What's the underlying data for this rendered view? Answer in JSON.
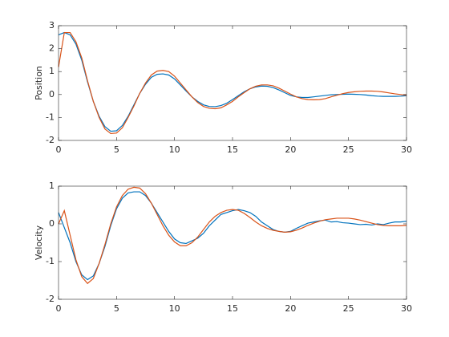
{
  "chart_data": [
    {
      "type": "line",
      "ylabel": "Position",
      "x": [
        0,
        0.5,
        1,
        1.5,
        2,
        2.5,
        3,
        3.5,
        4,
        4.5,
        5,
        5.5,
        6,
        6.5,
        7,
        7.5,
        8,
        8.5,
        9,
        9.5,
        10,
        10.5,
        11,
        11.5,
        12,
        12.5,
        13,
        13.5,
        14,
        14.5,
        15,
        15.5,
        16,
        16.5,
        17,
        17.5,
        18,
        18.5,
        19,
        19.5,
        20,
        20.5,
        21,
        21.5,
        22,
        22.5,
        23,
        23.5,
        24,
        24.5,
        25,
        25.5,
        26,
        26.5,
        27,
        27.5,
        28,
        28.5,
        29,
        29.5,
        30
      ],
      "series": [
        {
          "color": "#0072bd",
          "values": [
            2.6,
            2.7,
            2.6,
            2.2,
            1.5,
            0.55,
            -0.3,
            -0.95,
            -1.4,
            -1.6,
            -1.58,
            -1.35,
            -0.95,
            -0.45,
            0.05,
            0.45,
            0.75,
            0.88,
            0.9,
            0.85,
            0.68,
            0.42,
            0.15,
            -0.1,
            -0.3,
            -0.45,
            -0.52,
            -0.53,
            -0.48,
            -0.38,
            -0.22,
            -0.05,
            0.12,
            0.25,
            0.33,
            0.37,
            0.36,
            0.3,
            0.2,
            0.08,
            -0.04,
            -0.1,
            -0.13,
            -0.13,
            -0.1,
            -0.07,
            -0.04,
            -0.01,
            0,
            0.01,
            0.02,
            0.01,
            0,
            -0.02,
            -0.05,
            -0.07,
            -0.08,
            -0.08,
            -0.08,
            -0.07,
            -0.05
          ]
        },
        {
          "color": "#d95319",
          "values": [
            1.2,
            2.7,
            2.7,
            2.3,
            1.6,
            0.6,
            -0.3,
            -1.0,
            -1.5,
            -1.7,
            -1.68,
            -1.45,
            -1.0,
            -0.5,
            0.05,
            0.5,
            0.85,
            1.02,
            1.05,
            1.0,
            0.8,
            0.5,
            0.2,
            -0.1,
            -0.35,
            -0.52,
            -0.6,
            -0.62,
            -0.58,
            -0.45,
            -0.3,
            -0.1,
            0.08,
            0.25,
            0.36,
            0.42,
            0.42,
            0.38,
            0.28,
            0.15,
            0.02,
            -0.1,
            -0.18,
            -0.22,
            -0.23,
            -0.22,
            -0.18,
            -0.1,
            -0.03,
            0.04,
            0.09,
            0.12,
            0.14,
            0.15,
            0.15,
            0.14,
            0.11,
            0.07,
            0.03,
            0,
            -0.03
          ]
        }
      ],
      "xlim": [
        0,
        30
      ],
      "xticks": [
        0,
        5,
        10,
        15,
        20,
        25,
        30
      ],
      "ylim": [
        -2,
        3
      ],
      "yticks": [
        -2,
        -1,
        0,
        1,
        2,
        3
      ]
    },
    {
      "type": "line",
      "ylabel": "Velocity",
      "x": [
        0,
        0.5,
        1,
        1.5,
        2,
        2.5,
        3,
        3.5,
        4,
        4.5,
        5,
        5.5,
        6,
        6.5,
        7,
        7.5,
        8,
        8.5,
        9,
        9.5,
        10,
        10.5,
        11,
        11.5,
        12,
        12.5,
        13,
        13.5,
        14,
        14.5,
        15,
        15.5,
        16,
        16.5,
        17,
        17.5,
        18,
        18.5,
        19,
        19.5,
        20,
        20.5,
        21,
        21.5,
        22,
        22.5,
        23,
        23.5,
        24,
        24.5,
        25,
        25.5,
        26,
        26.5,
        27,
        27.5,
        28,
        28.5,
        29,
        29.5,
        30
      ],
      "series": [
        {
          "color": "#0072bd",
          "values": [
            0.3,
            -0.1,
            -0.5,
            -1.0,
            -1.35,
            -1.48,
            -1.38,
            -1.05,
            -0.6,
            -0.05,
            0.4,
            0.68,
            0.82,
            0.85,
            0.85,
            0.75,
            0.55,
            0.3,
            0.05,
            -0.2,
            -0.4,
            -0.5,
            -0.52,
            -0.45,
            -0.38,
            -0.25,
            -0.05,
            0.1,
            0.25,
            0.3,
            0.35,
            0.38,
            0.35,
            0.3,
            0.2,
            0.05,
            -0.05,
            -0.15,
            -0.2,
            -0.22,
            -0.2,
            -0.12,
            -0.05,
            0.02,
            0.05,
            0.08,
            0.1,
            0.05,
            0.06,
            0.03,
            0.02,
            0,
            -0.02,
            -0.01,
            -0.03,
            0,
            -0.02,
            0.02,
            0.05,
            0.05,
            0.07
          ]
        },
        {
          "color": "#d95319",
          "values": [
            0,
            0.35,
            -0.3,
            -0.95,
            -1.4,
            -1.58,
            -1.45,
            -1.05,
            -0.55,
            0,
            0.45,
            0.75,
            0.92,
            0.97,
            0.95,
            0.8,
            0.55,
            0.25,
            -0.05,
            -0.3,
            -0.48,
            -0.58,
            -0.58,
            -0.5,
            -0.35,
            -0.15,
            0.05,
            0.2,
            0.3,
            0.36,
            0.38,
            0.36,
            0.28,
            0.17,
            0.05,
            -0.05,
            -0.12,
            -0.17,
            -0.2,
            -0.22,
            -0.21,
            -0.17,
            -0.11,
            -0.04,
            0.02,
            0.07,
            0.11,
            0.13,
            0.15,
            0.15,
            0.15,
            0.13,
            0.1,
            0.06,
            0.02,
            -0.02,
            -0.04,
            -0.05,
            -0.05,
            -0.05,
            -0.04
          ]
        }
      ],
      "xlim": [
        0,
        30
      ],
      "xticks": [
        0,
        5,
        10,
        15,
        20,
        25,
        30
      ],
      "ylim": [
        -2,
        1
      ],
      "yticks": [
        -2,
        -1,
        0,
        1
      ]
    }
  ]
}
